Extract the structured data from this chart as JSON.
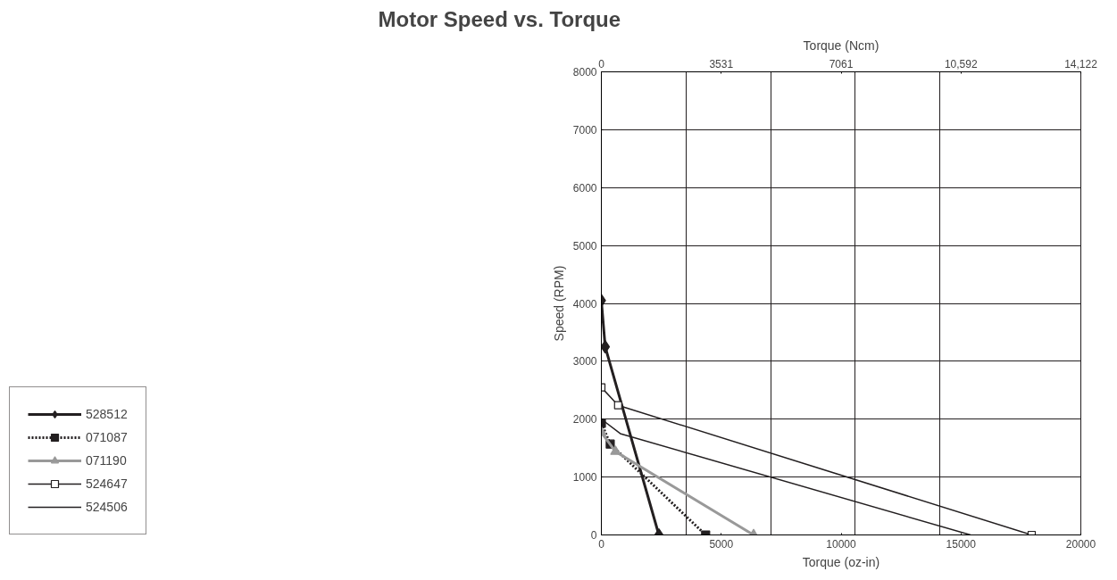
{
  "chart_data": {
    "type": "line",
    "title": "Motor Speed vs. Torque",
    "xlabel": "Torque (oz-in)",
    "ylabel": "Speed (RPM)",
    "x2label": "Torque (Ncm)",
    "xlim": [
      0,
      20000
    ],
    "xticks": [
      0,
      5000,
      10000,
      15000,
      20000
    ],
    "x2lim": [
      0,
      14122
    ],
    "x2ticks": [
      0,
      3531,
      7061,
      {
        "value": 10592,
        "label": "10,592"
      },
      {
        "value": 14122,
        "label": "14,122"
      }
    ],
    "ylim": [
      0,
      8000
    ],
    "yticks": [
      0,
      1000,
      2000,
      3000,
      4000,
      5000,
      6000,
      7000,
      8000
    ],
    "grid": true,
    "legend": "left",
    "series": [
      {
        "name": "528512",
        "color": "#231f20",
        "x": [
          0,
          160,
          2400
        ],
        "values": [
          4050,
          3250,
          0
        ],
        "marker": "diamond",
        "line_style": "solid"
      },
      {
        "name": "071087",
        "color": "#231f20",
        "x": [
          0,
          370,
          4350
        ],
        "values": [
          1930,
          1570,
          0
        ],
        "marker": "square",
        "line_style": "dotted"
      },
      {
        "name": "071190",
        "color": "#999999",
        "x": [
          0,
          590,
          6350
        ],
        "values": [
          1770,
          1440,
          0
        ],
        "marker": "triangle",
        "line_style": "solid"
      },
      {
        "name": "524647",
        "color": "#231f20",
        "x": [
          0,
          700,
          17950
        ],
        "values": [
          2550,
          2240,
          0
        ],
        "marker": "square",
        "line_style": "solid"
      },
      {
        "name": "524506",
        "color": "#231f20",
        "x": [
          0,
          790,
          15400
        ],
        "values": [
          2000,
          1750,
          0
        ],
        "marker": "none",
        "line_style": "solid"
      }
    ]
  }
}
